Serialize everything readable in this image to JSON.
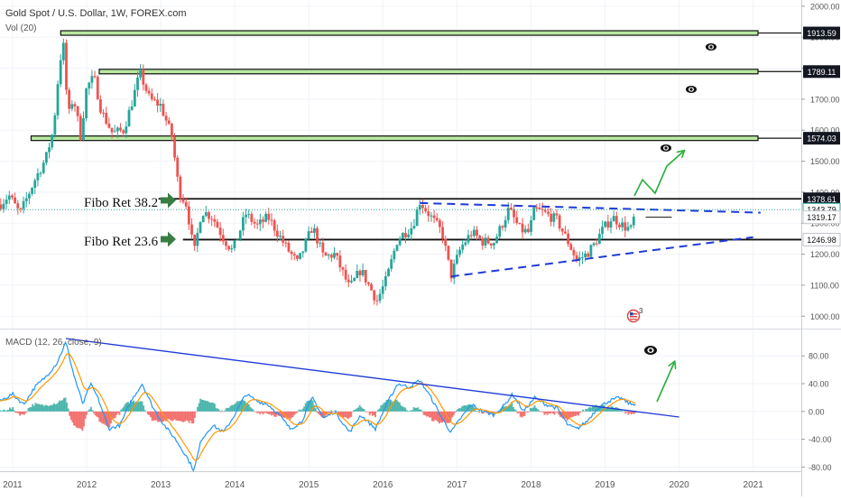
{
  "header": {
    "symbol_line": "Gold Spot / U.S. Dollar, 1W, FOREX.com",
    "volume_label": "Vol (20)"
  },
  "macd_header": "MACD (12, 26, close, 9)",
  "colors": {
    "up": "#26a69a",
    "down": "#ef5350",
    "macd_line": "#2196f3",
    "signal_line": "#ff9800",
    "trendline": "#1e3ad8",
    "fib_fill": "#b9e7a0",
    "arrow_green": "#27ae3a",
    "annotation_arrow": "#3a7d44"
  },
  "axes": {
    "x_ticks": [
      "2011",
      "2012",
      "2013",
      "2014",
      "2015",
      "2016",
      "2017",
      "2018",
      "2019",
      "2020",
      "2021"
    ],
    "price_ticks": [
      "2000.00",
      "1900.00",
      "1800.00",
      "1700.00",
      "1600.00",
      "1500.00",
      "1400.00",
      "1300.00",
      "1200.00",
      "1100.00",
      "1000.00"
    ],
    "macd_ticks": [
      "80.00",
      "40.00",
      "0.00",
      "-40.00",
      "-80.00"
    ]
  },
  "annotations": {
    "fibo_382": "Fibo Ret 38.2",
    "fibo_236": "Fibo Ret 23.6",
    "event_badge": "3"
  },
  "price_labels": [
    {
      "text": "1913.59",
      "value": 1913.59,
      "style": "dark"
    },
    {
      "text": "1789.11",
      "value": 1789.11,
      "style": "dark"
    },
    {
      "text": "1574.03",
      "value": 1574.03,
      "style": "dark"
    },
    {
      "text": "1378.61",
      "value": 1378.61,
      "style": "dark"
    },
    {
      "text": "1343.79",
      "value": 1343.79,
      "style": "current"
    },
    {
      "text": "1319.17",
      "value": 1319.17,
      "style": "light"
    },
    {
      "text": "1246.98",
      "value": 1246.98,
      "style": "light"
    }
  ],
  "chart_data": [
    {
      "type": "candlestick",
      "title": "Gold Spot / U.S. Dollar, 1W, FOREX.com",
      "x_range": [
        2010.83,
        2021.65
      ],
      "ylim": [
        960,
        2020
      ],
      "horizontal_levels": [
        {
          "value": 1913.59,
          "from": 2011.65,
          "style": "zone"
        },
        {
          "value": 1789.11,
          "from": 2012.17,
          "style": "zone"
        },
        {
          "value": 1574.03,
          "from": 2011.25,
          "style": "zone"
        },
        {
          "value": 1378.61,
          "from": 2012.97,
          "style": "line"
        },
        {
          "value": 1319.17,
          "from": 2019.55,
          "to": 2019.9,
          "style": "line"
        },
        {
          "value": 1246.98,
          "from": 2013.3,
          "style": "line"
        }
      ],
      "trendlines": [
        {
          "style": "dashed",
          "points": [
            [
              2016.5,
              1365
            ],
            [
              2021.1,
              1334
            ]
          ]
        },
        {
          "style": "dashed",
          "points": [
            [
              2016.92,
              1128
            ],
            [
              2021.0,
              1255
            ]
          ]
        }
      ],
      "price_path": [
        [
          2010.83,
          1360
        ],
        [
          2010.95,
          1390
        ],
        [
          2011.1,
          1330
        ],
        [
          2011.3,
          1440
        ],
        [
          2011.45,
          1510
        ],
        [
          2011.55,
          1600
        ],
        [
          2011.62,
          1780
        ],
        [
          2011.68,
          1895
        ],
        [
          2011.75,
          1640
        ],
        [
          2011.82,
          1710
        ],
        [
          2011.92,
          1580
        ],
        [
          2012.0,
          1740
        ],
        [
          2012.1,
          1770
        ],
        [
          2012.2,
          1660
        ],
        [
          2012.35,
          1590
        ],
        [
          2012.5,
          1600
        ],
        [
          2012.6,
          1680
        ],
        [
          2012.72,
          1785
        ],
        [
          2012.85,
          1700
        ],
        [
          2013.0,
          1680
        ],
        [
          2013.15,
          1580
        ],
        [
          2013.25,
          1400
        ],
        [
          2013.35,
          1360
        ],
        [
          2013.45,
          1200
        ],
        [
          2013.55,
          1340
        ],
        [
          2013.7,
          1320
        ],
        [
          2013.85,
          1250
        ],
        [
          2013.97,
          1210
        ],
        [
          2014.15,
          1330
        ],
        [
          2014.3,
          1290
        ],
        [
          2014.45,
          1320
        ],
        [
          2014.55,
          1280
        ],
        [
          2014.7,
          1220
        ],
        [
          2014.85,
          1170
        ],
        [
          2015.05,
          1290
        ],
        [
          2015.2,
          1190
        ],
        [
          2015.35,
          1200
        ],
        [
          2015.55,
          1090
        ],
        [
          2015.7,
          1150
        ],
        [
          2015.92,
          1050
        ],
        [
          2016.05,
          1120
        ],
        [
          2016.2,
          1250
        ],
        [
          2016.4,
          1290
        ],
        [
          2016.5,
          1370
        ],
        [
          2016.65,
          1320
        ],
        [
          2016.8,
          1270
        ],
        [
          2016.92,
          1130
        ],
        [
          2017.05,
          1220
        ],
        [
          2017.2,
          1270
        ],
        [
          2017.35,
          1240
        ],
        [
          2017.5,
          1240
        ],
        [
          2017.6,
          1290
        ],
        [
          2017.7,
          1345
        ],
        [
          2017.85,
          1280
        ],
        [
          2017.97,
          1270
        ],
        [
          2018.05,
          1345
        ],
        [
          2018.2,
          1330
        ],
        [
          2018.35,
          1310
        ],
        [
          2018.5,
          1240
        ],
        [
          2018.62,
          1180
        ],
        [
          2018.75,
          1200
        ],
        [
          2018.85,
          1230
        ],
        [
          2018.97,
          1280
        ],
        [
          2019.1,
          1320
        ],
        [
          2019.25,
          1290
        ],
        [
          2019.35,
          1280
        ],
        [
          2019.42,
          1345
        ]
      ]
    },
    {
      "type": "macd",
      "title": "MACD (12, 26, close, 9)",
      "x_range": [
        2010.83,
        2021.65
      ],
      "ylim": [
        -86,
        118
      ],
      "trendline": {
        "style": "solid",
        "points": [
          [
            2011.72,
            105
          ],
          [
            2020.0,
            -8
          ]
        ]
      },
      "macd_path": [
        [
          2010.83,
          15
        ],
        [
          2011.0,
          25
        ],
        [
          2011.15,
          10
        ],
        [
          2011.3,
          35
        ],
        [
          2011.45,
          50
        ],
        [
          2011.6,
          70
        ],
        [
          2011.72,
          100
        ],
        [
          2011.82,
          55
        ],
        [
          2011.95,
          10
        ],
        [
          2012.05,
          40
        ],
        [
          2012.15,
          20
        ],
        [
          2012.3,
          -25
        ],
        [
          2012.45,
          -20
        ],
        [
          2012.6,
          15
        ],
        [
          2012.75,
          40
        ],
        [
          2012.9,
          5
        ],
        [
          2013.05,
          -20
        ],
        [
          2013.2,
          -40
        ],
        [
          2013.35,
          -65
        ],
        [
          2013.45,
          -85
        ],
        [
          2013.55,
          -40
        ],
        [
          2013.7,
          -20
        ],
        [
          2013.85,
          -30
        ],
        [
          2013.97,
          -10
        ],
        [
          2014.15,
          25
        ],
        [
          2014.3,
          15
        ],
        [
          2014.45,
          10
        ],
        [
          2014.6,
          -5
        ],
        [
          2014.75,
          -25
        ],
        [
          2014.9,
          -15
        ],
        [
          2015.05,
          20
        ],
        [
          2015.2,
          -10
        ],
        [
          2015.35,
          0
        ],
        [
          2015.55,
          -30
        ],
        [
          2015.7,
          -5
        ],
        [
          2015.9,
          -25
        ],
        [
          2016.05,
          10
        ],
        [
          2016.2,
          40
        ],
        [
          2016.35,
          35
        ],
        [
          2016.5,
          45
        ],
        [
          2016.65,
          20
        ],
        [
          2016.8,
          -10
        ],
        [
          2016.92,
          -30
        ],
        [
          2017.05,
          -10
        ],
        [
          2017.2,
          10
        ],
        [
          2017.35,
          0
        ],
        [
          2017.5,
          -5
        ],
        [
          2017.65,
          10
        ],
        [
          2017.75,
          25
        ],
        [
          2017.9,
          0
        ],
        [
          2018.05,
          20
        ],
        [
          2018.2,
          10
        ],
        [
          2018.35,
          5
        ],
        [
          2018.5,
          -20
        ],
        [
          2018.62,
          -25
        ],
        [
          2018.75,
          -15
        ],
        [
          2018.9,
          5
        ],
        [
          2019.05,
          15
        ],
        [
          2019.2,
          20
        ],
        [
          2019.35,
          10
        ],
        [
          2019.42,
          12
        ]
      ]
    }
  ]
}
